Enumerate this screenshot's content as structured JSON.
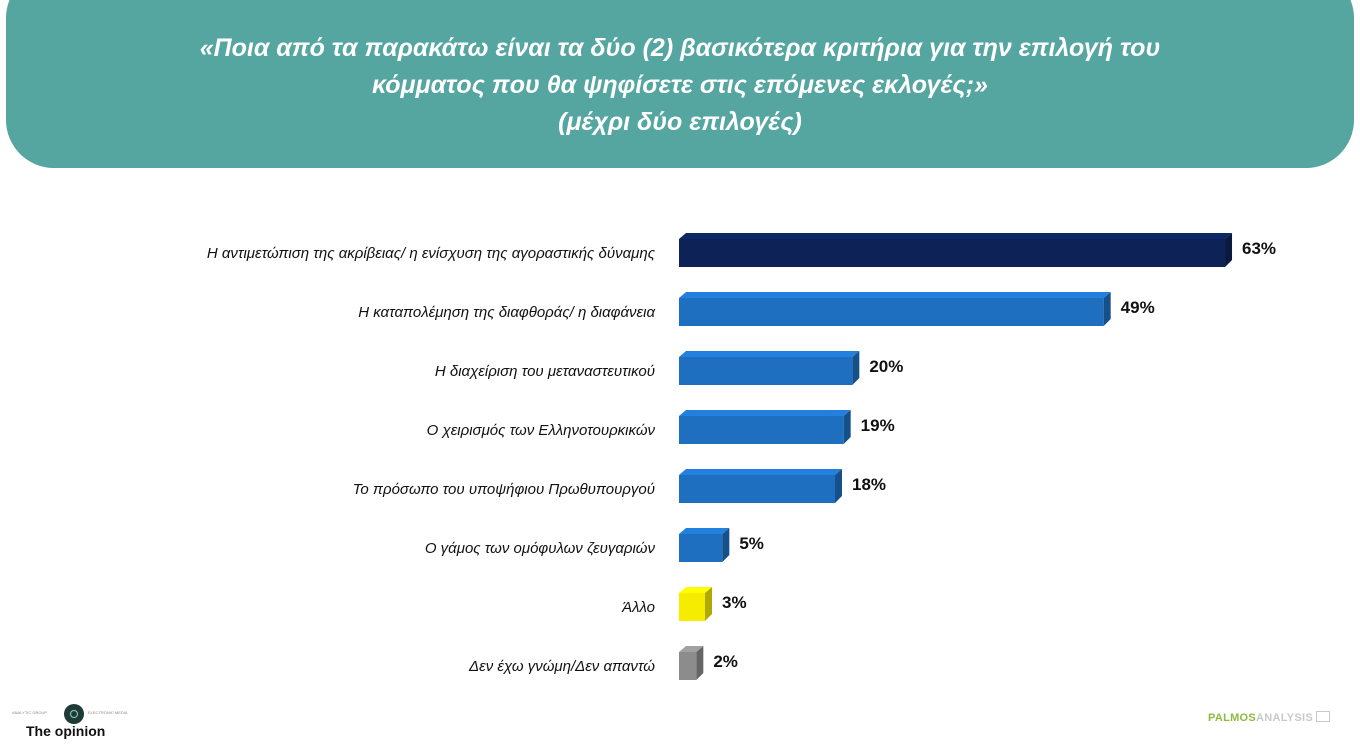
{
  "header": {
    "question_line1": "«Ποια από τα παρακάτω είναι τα δύο (2) βασικότερα κριτήρια για την επιλογή του",
    "question_line2": "κόμματος που θα ψηφίσετε στις επόμενες εκλογές;»",
    "note": "(μέχρι δύο επιλογές)"
  },
  "chart_data": {
    "type": "bar",
    "orientation": "horizontal",
    "categories": [
      "Η αντιμετώπιση της ακρίβειας/ η ενίσχυση της αγοραστικής δύναμης",
      "Η καταπολέμηση της διαφθοράς/ η διαφάνεια",
      "Η διαχείριση του μεταναστευτικού",
      "Ο χειρισμός των Ελληνοτουρκικών",
      "Το πρόσωπο του υποψήφιου Πρωθυπουργού",
      "Ο γάμος των ομόφυλων ζευγαριών",
      "Άλλο",
      "Δεν έχω γνώμη/Δεν απαντώ"
    ],
    "values": [
      63,
      49,
      20,
      19,
      18,
      5,
      3,
      2
    ],
    "value_labels": [
      "63%",
      "49%",
      "20%",
      "19%",
      "18%",
      "5%",
      "3%",
      "2%"
    ],
    "unit": "%",
    "bar_colors": [
      "#0d2357",
      "#1f6fc1",
      "#1f6fc1",
      "#1f6fc1",
      "#1f6fc1",
      "#1f6fc1",
      "#f5ec00",
      "#8c8c8c"
    ],
    "grid": false,
    "legend": "none"
  },
  "footer": {
    "left_brand": "The opinion",
    "left_small_left": "ANALYTIC GROUP",
    "left_small_right": "ELECTRONIC MEDIA",
    "right_brand_part1": "PALMOS",
    "right_brand_part2": "ANALYSIS"
  }
}
